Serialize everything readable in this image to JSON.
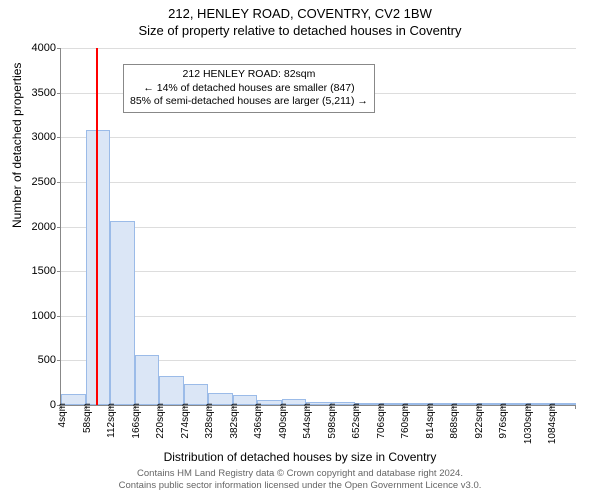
{
  "titles": {
    "line1": "212, HENLEY ROAD, COVENTRY, CV2 1BW",
    "line2": "Size of property relative to detached houses in Coventry"
  },
  "axes": {
    "ylabel": "Number of detached properties",
    "xlabel": "Distribution of detached houses by size in Coventry",
    "ylim": [
      0,
      4000
    ],
    "ytick_step": 500,
    "grid_color": "#dddddd",
    "axis_color": "#888888"
  },
  "chart": {
    "type": "histogram",
    "bar_fill": "#dbe6f6",
    "bar_stroke": "#9bbbe8",
    "background": "#ffffff",
    "n_bins": 21,
    "bin_start": 4,
    "bin_width": 54,
    "values": [
      120,
      3080,
      2060,
      560,
      320,
      240,
      130,
      110,
      60,
      70,
      35,
      30,
      20,
      18,
      12,
      10,
      8,
      6,
      4,
      4,
      2
    ],
    "x_tick_labels": [
      "4sqm",
      "58sqm",
      "112sqm",
      "166sqm",
      "220sqm",
      "274sqm",
      "328sqm",
      "382sqm",
      "436sqm",
      "490sqm",
      "544sqm",
      "598sqm",
      "652sqm",
      "706sqm",
      "760sqm",
      "814sqm",
      "868sqm",
      "922sqm",
      "976sqm",
      "1030sqm",
      "1084sqm"
    ]
  },
  "reference": {
    "value_sqm": 82,
    "color": "#ff0000"
  },
  "annotation": {
    "lines": [
      "212 HENLEY ROAD: 82sqm",
      "← 14% of detached houses are smaller (847)",
      "85% of semi-detached houses are larger (5,211) →"
    ],
    "border": "#888888",
    "bg": "#ffffff"
  },
  "footer": {
    "line1": "Contains HM Land Registry data © Crown copyright and database right 2024.",
    "line2": "Contains public sector information licensed under the Open Government Licence v3.0."
  }
}
